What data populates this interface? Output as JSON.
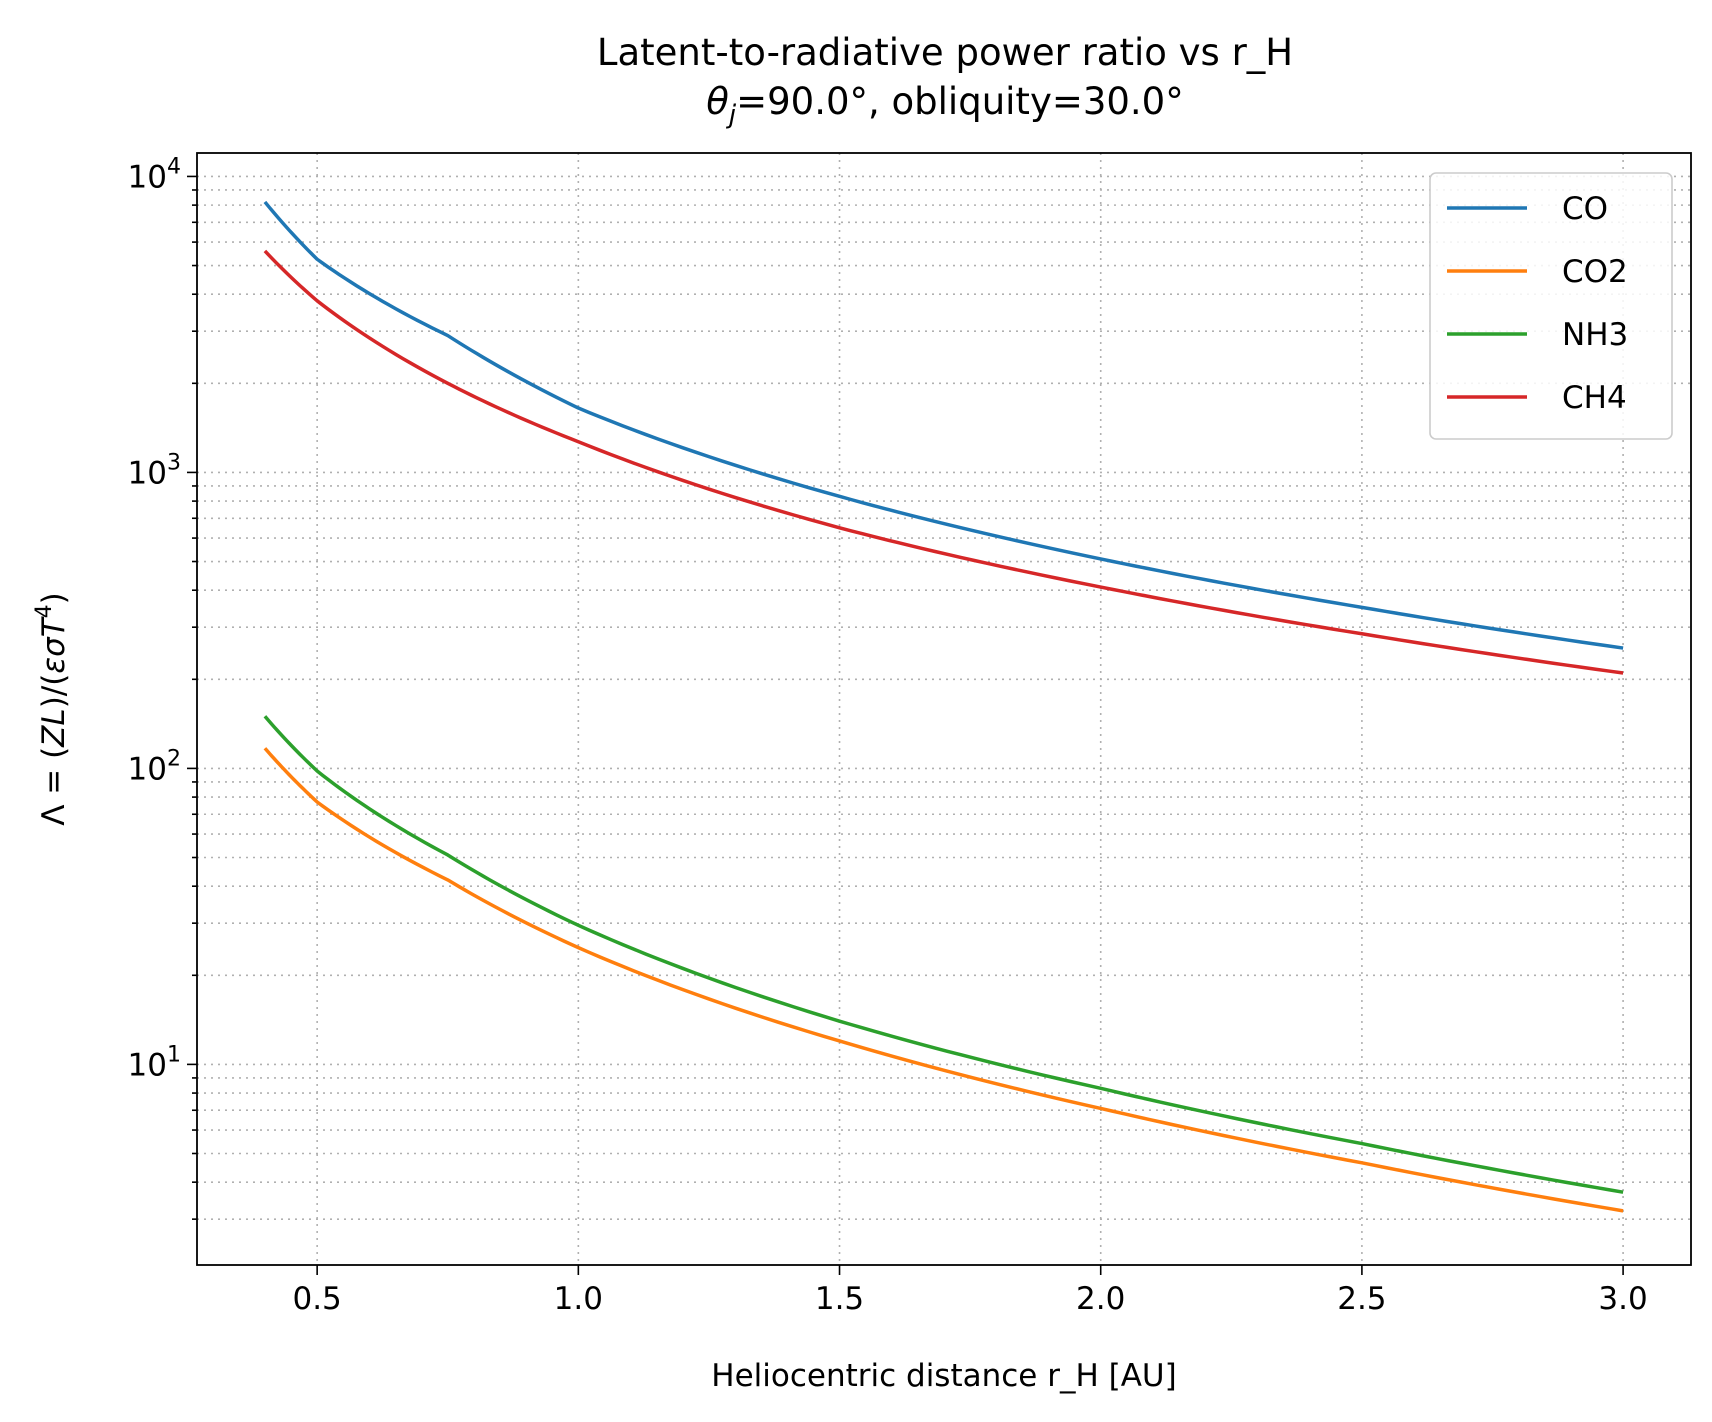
{
  "chart_data": {
    "type": "line",
    "title": "Latent-to-radiative power ratio vs r_H",
    "subtitle": {
      "theta_symbol": "θ",
      "theta_sub": "j",
      "rest": "=90.0°, obliquity=30.0°"
    },
    "xlabel": "Heliocentric distance r_H [AU]",
    "ylabel": {
      "lhs": "Λ = (",
      "zl": "ZL",
      "mid": ")/(",
      "eps": "εσT",
      "exp": "4",
      "rhs": ")"
    },
    "yscale": "log",
    "xlim": [
      0.27,
      3.13
    ],
    "ylim": [
      2.1,
      12000
    ],
    "xticks": [
      {
        "v": 0.5,
        "label": "0.5"
      },
      {
        "v": 1.0,
        "label": "1.0"
      },
      {
        "v": 1.5,
        "label": "1.5"
      },
      {
        "v": 2.0,
        "label": "2.0"
      },
      {
        "v": 2.5,
        "label": "2.5"
      },
      {
        "v": 3.0,
        "label": "3.0"
      }
    ],
    "yticks": [
      {
        "v": 10,
        "base": "10",
        "exp": "1"
      },
      {
        "v": 100,
        "base": "10",
        "exp": "2"
      },
      {
        "v": 1000,
        "base": "10",
        "exp": "3"
      },
      {
        "v": 10000,
        "base": "10",
        "exp": "4"
      }
    ],
    "grid": true,
    "legend_position": "top-right",
    "series": [
      {
        "name": "CO",
        "color": "#1f77b4",
        "x": [
          0.4,
          0.5,
          0.75,
          1.0,
          1.5,
          2.0,
          2.5,
          3.0
        ],
        "y": [
          8200,
          5250,
          2900,
          1650,
          830,
          510,
          350,
          255
        ]
      },
      {
        "name": "CO2",
        "color": "#ff7f0e",
        "x": [
          0.4,
          0.5,
          0.75,
          1.0,
          1.5,
          2.0,
          2.5,
          3.0
        ],
        "y": [
          117,
          77,
          42,
          24.8,
          12.0,
          7.1,
          4.65,
          3.2
        ]
      },
      {
        "name": "NH3",
        "color": "#2ca02c",
        "x": [
          0.4,
          0.5,
          0.75,
          1.0,
          1.5,
          2.0,
          2.5,
          3.0
        ],
        "y": [
          150,
          98,
          51,
          29.5,
          14.0,
          8.3,
          5.4,
          3.7
        ]
      },
      {
        "name": "CH4",
        "color": "#d62728",
        "x": [
          0.4,
          0.5,
          0.75,
          1.0,
          1.5,
          2.0,
          2.5,
          3.0
        ],
        "y": [
          5600,
          3800,
          2000,
          1270,
          650,
          410,
          285,
          210
        ]
      }
    ]
  }
}
